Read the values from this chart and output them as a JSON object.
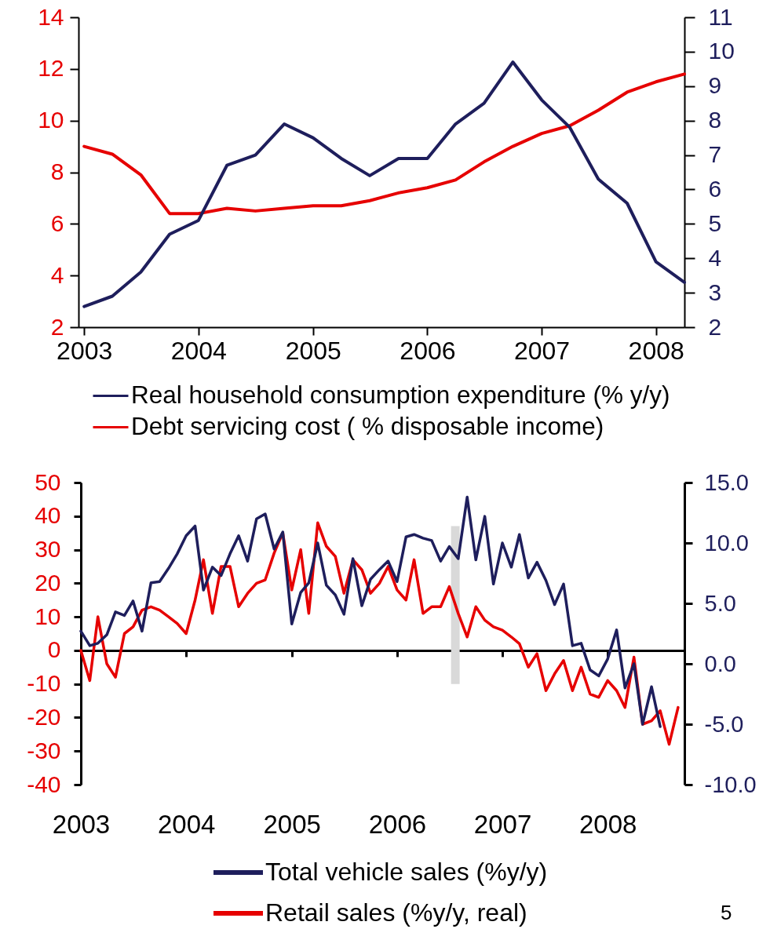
{
  "chart_data": [
    {
      "type": "line",
      "x": [
        "2003-01",
        "2003-04",
        "2003-07",
        "2003-10",
        "2004-01",
        "2004-04",
        "2004-07",
        "2004-10",
        "2005-01",
        "2005-04",
        "2005-07",
        "2005-10",
        "2006-01",
        "2006-04",
        "2006-07",
        "2006-10",
        "2007-01",
        "2007-04",
        "2007-07",
        "2007-10",
        "2008-01",
        "2008-04"
      ],
      "series": [
        {
          "name": "Real household consumption expenditure (% y/y)",
          "color": "#1e1e5c",
          "axis": "y2",
          "values": [
            2.6,
            2.9,
            3.6,
            4.7,
            5.1,
            6.7,
            7.0,
            7.9,
            7.5,
            6.9,
            6.4,
            6.9,
            6.9,
            7.9,
            8.5,
            9.7,
            8.6,
            7.8,
            6.3,
            5.6,
            3.9,
            3.3
          ]
        },
        {
          "name": "Debt servicing cost ( % disposable income)",
          "color": "#e60000",
          "values": [
            9.0,
            8.7,
            7.9,
            6.4,
            6.4,
            6.6,
            6.5,
            6.6,
            6.7,
            6.7,
            6.9,
            7.2,
            7.4,
            7.7,
            8.4,
            9.0,
            9.5,
            9.8,
            10.4,
            11.1,
            11.5,
            11.8
          ]
        }
      ],
      "xlim": [
        "2002-12-14",
        "2008-04-01"
      ],
      "xticks": [
        "2003",
        "2004",
        "2005",
        "2006",
        "2007",
        "2008"
      ],
      "ylim": [
        2,
        14
      ],
      "yticks": [
        2,
        4,
        6,
        8,
        10,
        12,
        14
      ],
      "y2lim": [
        2,
        11
      ],
      "y2ticks": [
        2,
        3,
        4,
        5,
        6,
        7,
        8,
        9,
        10,
        11
      ],
      "legend": "bottom"
    },
    {
      "type": "line",
      "x": [
        "2003-01",
        "2003-02",
        "2003-03",
        "2003-04",
        "2003-05",
        "2003-06",
        "2003-07",
        "2003-08",
        "2003-09",
        "2003-10",
        "2003-11",
        "2003-12",
        "2004-01",
        "2004-02",
        "2004-03",
        "2004-04",
        "2004-05",
        "2004-06",
        "2004-07",
        "2004-08",
        "2004-09",
        "2004-10",
        "2004-11",
        "2004-12",
        "2005-01",
        "2005-02",
        "2005-03",
        "2005-04",
        "2005-05",
        "2005-06",
        "2005-07",
        "2005-08",
        "2005-09",
        "2005-10",
        "2005-11",
        "2005-12",
        "2006-01",
        "2006-02",
        "2006-03",
        "2006-04",
        "2006-05",
        "2006-06",
        "2006-07",
        "2006-08",
        "2006-09",
        "2006-10",
        "2006-11",
        "2006-12",
        "2007-01",
        "2007-02",
        "2007-03",
        "2007-04",
        "2007-05",
        "2007-06",
        "2007-07",
        "2007-08",
        "2007-09",
        "2007-10",
        "2007-11",
        "2007-12",
        "2008-01",
        "2008-02",
        "2008-03",
        "2008-04",
        "2008-05",
        "2008-06",
        "2008-07",
        "2008-08",
        "2008-09"
      ],
      "series": [
        {
          "type": "bar",
          "color": "#d9d9d9",
          "x": [
            "2006-07-22"
          ],
          "base": [
            -10
          ],
          "values": [
            47
          ]
        },
        {
          "name": "Total vehicle sales (%y/y)",
          "color": "#1e1e5c",
          "axis": "y2",
          "values": [
            2.7,
            1.5,
            1.7,
            2.4,
            4.3,
            4.0,
            5.2,
            2.7,
            6.7,
            6.8,
            7.9,
            9.1,
            10.6,
            11.4,
            6.1,
            8.0,
            7.3,
            9.1,
            10.6,
            8.5,
            12.0,
            12.4,
            9.5,
            10.9,
            3.3,
            5.9,
            6.7,
            10.0,
            6.5,
            5.7,
            4.1,
            8.7,
            4.8,
            7.0,
            7.8,
            8.5,
            6.8,
            10.5,
            10.7,
            10.4,
            10.2,
            8.5,
            9.7,
            8.7,
            13.8,
            8.6,
            12.2,
            6.6,
            10.0,
            8.0,
            10.7,
            7.1,
            8.4,
            6.9,
            4.9,
            6.6,
            1.5,
            1.7,
            -0.5,
            -1.0,
            0.4,
            2.8,
            -2.0,
            0.0,
            -5.0,
            -1.9,
            -5.2,
            null,
            null
          ]
        },
        {
          "name": "Retail sales (%y/y, real)",
          "color": "#e60000",
          "values": [
            0,
            -9,
            10,
            -4,
            -8,
            5,
            7,
            12,
            13,
            12,
            10,
            8,
            5,
            15,
            27,
            11,
            25,
            25,
            13,
            17,
            20,
            21,
            29,
            35,
            18,
            30,
            11,
            38,
            31,
            28,
            17,
            27,
            24,
            17,
            20,
            25,
            18,
            15,
            27,
            11,
            13,
            13,
            19,
            11,
            4,
            13,
            9,
            7,
            6,
            4,
            2,
            -5,
            -1,
            -12,
            -7,
            -3,
            -12,
            -5,
            -13,
            -14,
            -9,
            -12,
            -17,
            -2,
            -22,
            -21,
            -18,
            -28,
            -17
          ]
        }
      ],
      "xlim": [
        "2003-01-01",
        "2008-09-23"
      ],
      "xticks": [
        "2003",
        "2004",
        "2005",
        "2006",
        "2007",
        "2008"
      ],
      "ylim": [
        -40,
        50
      ],
      "yticks": [
        -40,
        -30,
        -20,
        -10,
        0,
        10,
        20,
        30,
        40,
        50
      ],
      "y2lim": [
        -10,
        15
      ],
      "y2ticks": [
        {
          "value": -10,
          "label": "-10.0"
        },
        {
          "value": -5,
          "label": "-5.0"
        },
        {
          "value": 0,
          "label": "0.0"
        },
        {
          "value": 5,
          "label": "5.0"
        },
        {
          "value": 10,
          "label": "10.0"
        },
        {
          "value": 15,
          "label": "15.0"
        }
      ],
      "legend": "bottom",
      "annotations": [
        "5"
      ]
    }
  ]
}
